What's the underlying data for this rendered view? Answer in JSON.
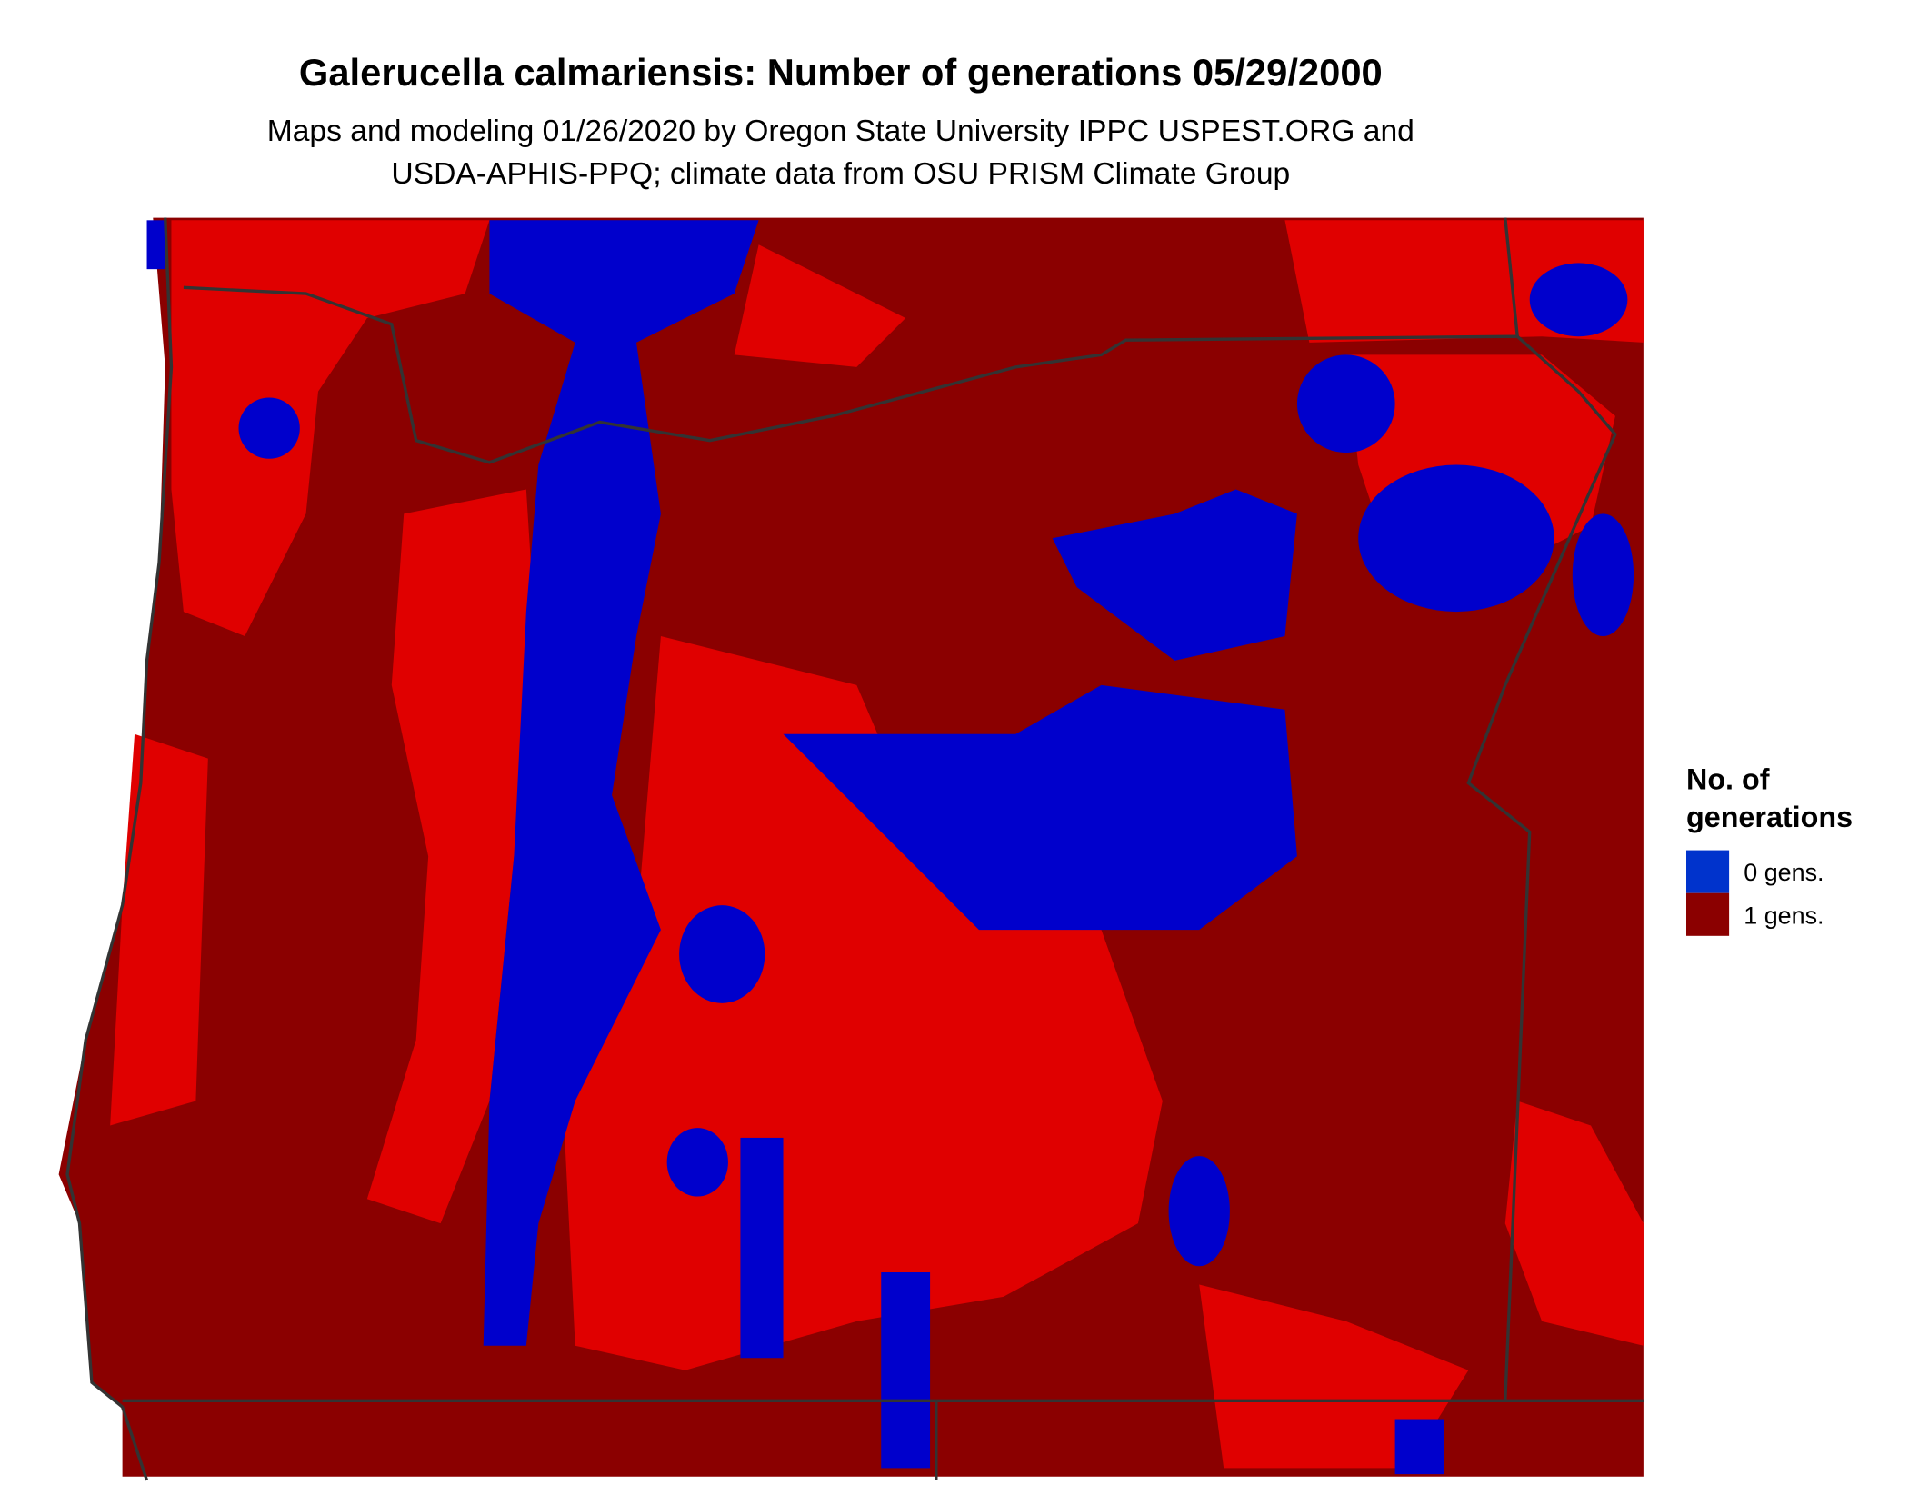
{
  "header": {
    "title": "Galerucella calmariensis: Number of generations 05/29/2000",
    "subtitle": [
      "Maps and modeling 01/26/2020 by Oregon State University IPPC USPEST.ORG and",
      "USDA-APHIS-PPQ; climate data from OSU PRISM Climate Group"
    ]
  },
  "legend": {
    "title": [
      "No. of",
      "generations"
    ],
    "items": [
      {
        "label": "0 gens.",
        "color": "#0033cc"
      },
      {
        "label": "1 gens.",
        "color": "#8b0000"
      }
    ]
  }
}
